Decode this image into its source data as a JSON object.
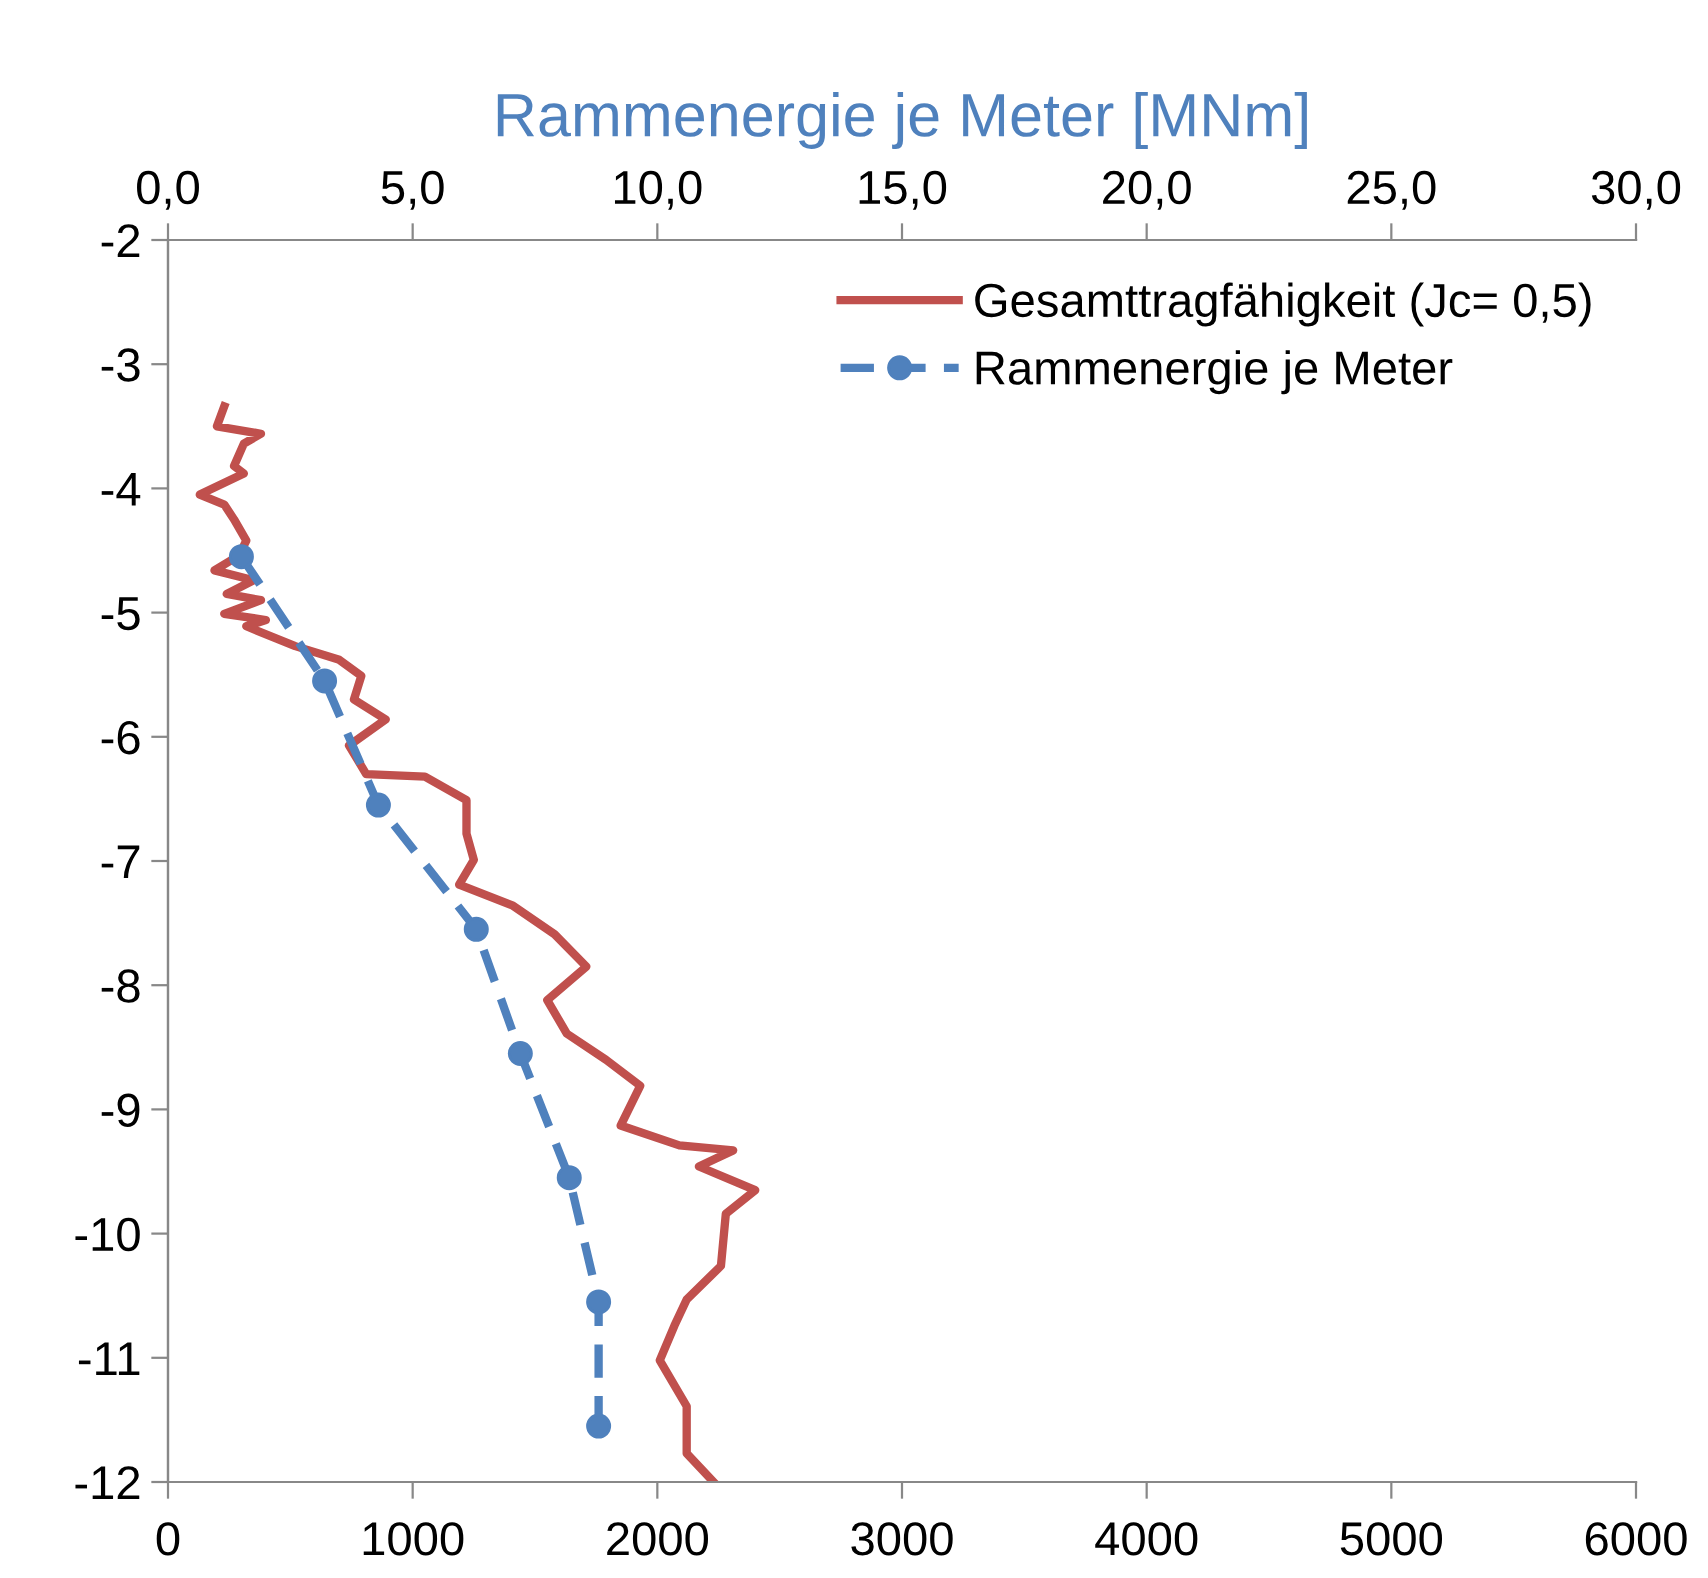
{
  "chart_data": {
    "type": "line",
    "title": "Rammenergie je Meter [MNm]",
    "xlim": [
      0,
      6000
    ],
    "xticks": [
      0,
      1000,
      2000,
      3000,
      4000,
      5000,
      6000
    ],
    "x2lim": [
      0,
      30
    ],
    "x2ticks": [
      {
        "value": 0,
        "label": "0,0"
      },
      {
        "value": 5,
        "label": "5,0"
      },
      {
        "value": 10,
        "label": "10,0"
      },
      {
        "value": 15,
        "label": "15,0"
      },
      {
        "value": 20,
        "label": "20,0"
      },
      {
        "value": 25,
        "label": "25,0"
      },
      {
        "value": 30,
        "label": "30,0"
      }
    ],
    "ylim": [
      -12,
      -2
    ],
    "yticks": [
      -2,
      -3,
      -4,
      -5,
      -6,
      -7,
      -8,
      -9,
      -10,
      -11,
      -12
    ],
    "grid": false,
    "legend": "top right",
    "series": [
      {
        "name": "Gesamttragfähigkeit (Jc= 0,5)",
        "color": "#c0504d",
        "line_style": "solid",
        "marker": "none",
        "x": [
          230,
          200,
          380,
          310,
          270,
          310,
          130,
          230,
          270,
          320,
          290,
          190,
          350,
          240,
          380,
          230,
          400,
          320,
          520,
          700,
          790,
          760,
          890,
          740,
          810,
          1050,
          1220,
          1220,
          1250,
          1190,
          1410,
          1580,
          1710,
          1550,
          1630,
          1790,
          1930,
          1850,
          2090,
          2310,
          2170,
          2400,
          2280,
          2260,
          2120,
          2070,
          2010,
          2120,
          2120,
          2230
        ],
        "values": [
          -3.34,
          -3.5,
          -3.56,
          -3.64,
          -3.82,
          -3.88,
          -4.05,
          -4.13,
          -4.25,
          -4.42,
          -4.54,
          -4.66,
          -4.74,
          -4.85,
          -4.9,
          -5.01,
          -5.06,
          -5.11,
          -5.27,
          -5.38,
          -5.51,
          -5.7,
          -5.86,
          -6.07,
          -6.3,
          -6.32,
          -6.51,
          -6.78,
          -6.99,
          -7.19,
          -7.36,
          -7.59,
          -7.85,
          -8.12,
          -8.39,
          -8.6,
          -8.81,
          -9.13,
          -9.29,
          -9.33,
          -9.46,
          -9.65,
          -9.84,
          -10.26,
          -10.53,
          -10.74,
          -11.02,
          -11.39,
          -11.77,
          -12.0
        ]
      },
      {
        "name": "Rammenergie je Meter",
        "color": "#4f81bd",
        "axis": "x2",
        "line_style": "dashed",
        "marker": "circle",
        "x": [
          1.5,
          3.2,
          4.3,
          6.3,
          7.2,
          8.2,
          8.8,
          8.8
        ],
        "values": [
          -4.55,
          -5.55,
          -6.55,
          -7.55,
          -8.55,
          -9.55,
          -10.55,
          -11.55
        ]
      }
    ]
  }
}
